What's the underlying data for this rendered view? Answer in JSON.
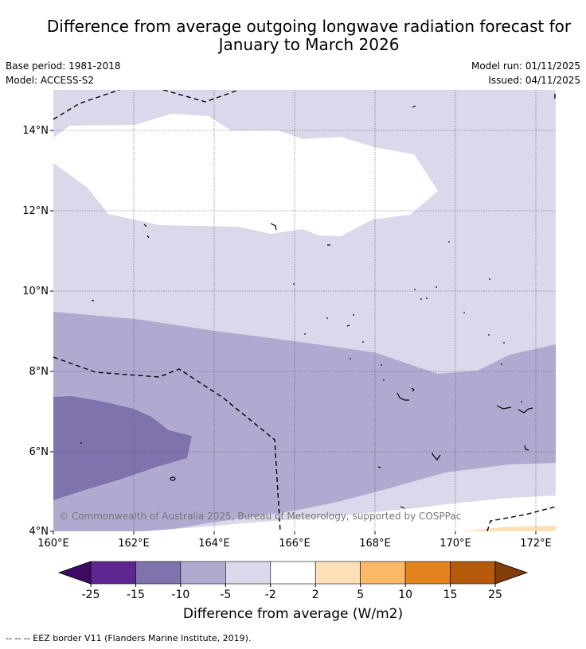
{
  "header": {
    "title_line1": "Difference from average outgoing longwave radiation forecast for",
    "title_line2": "January to March 2026",
    "base_period": "Base period: 1981-2018",
    "model": "Model: ACCESS-S2",
    "model_run": "Model run: 01/11/2025",
    "issued": "Issued: 04/11/2025"
  },
  "map": {
    "lon_ticks": [
      "160°E",
      "162°E",
      "164°E",
      "166°E",
      "168°E",
      "170°E",
      "172°E"
    ],
    "lat_ticks": [
      "14°N",
      "12°N",
      "10°N",
      "8°N",
      "6°N",
      "4°N"
    ],
    "watermark": "© Commonwealth of Australia 2025, Bureau of Meteorology, supported by COSPPac"
  },
  "colorbar": {
    "ticks": [
      "-25",
      "-15",
      "-10",
      "-5",
      "-2",
      "2",
      "5",
      "10",
      "15",
      "25"
    ],
    "label": "Difference from average (W/m2)",
    "colors": [
      "#3f0a63",
      "#5e2690",
      "#7f72ad",
      "#b0aad1",
      "#d9d9eb",
      "#ffffff",
      "#fde0b8",
      "#fbb866",
      "#e2831c",
      "#b45a0a",
      "#833d0b"
    ]
  },
  "legend": {
    "eez_text": "-- -- -- EEZ border V11 (Flanders Marine Institute, 2019)."
  }
}
